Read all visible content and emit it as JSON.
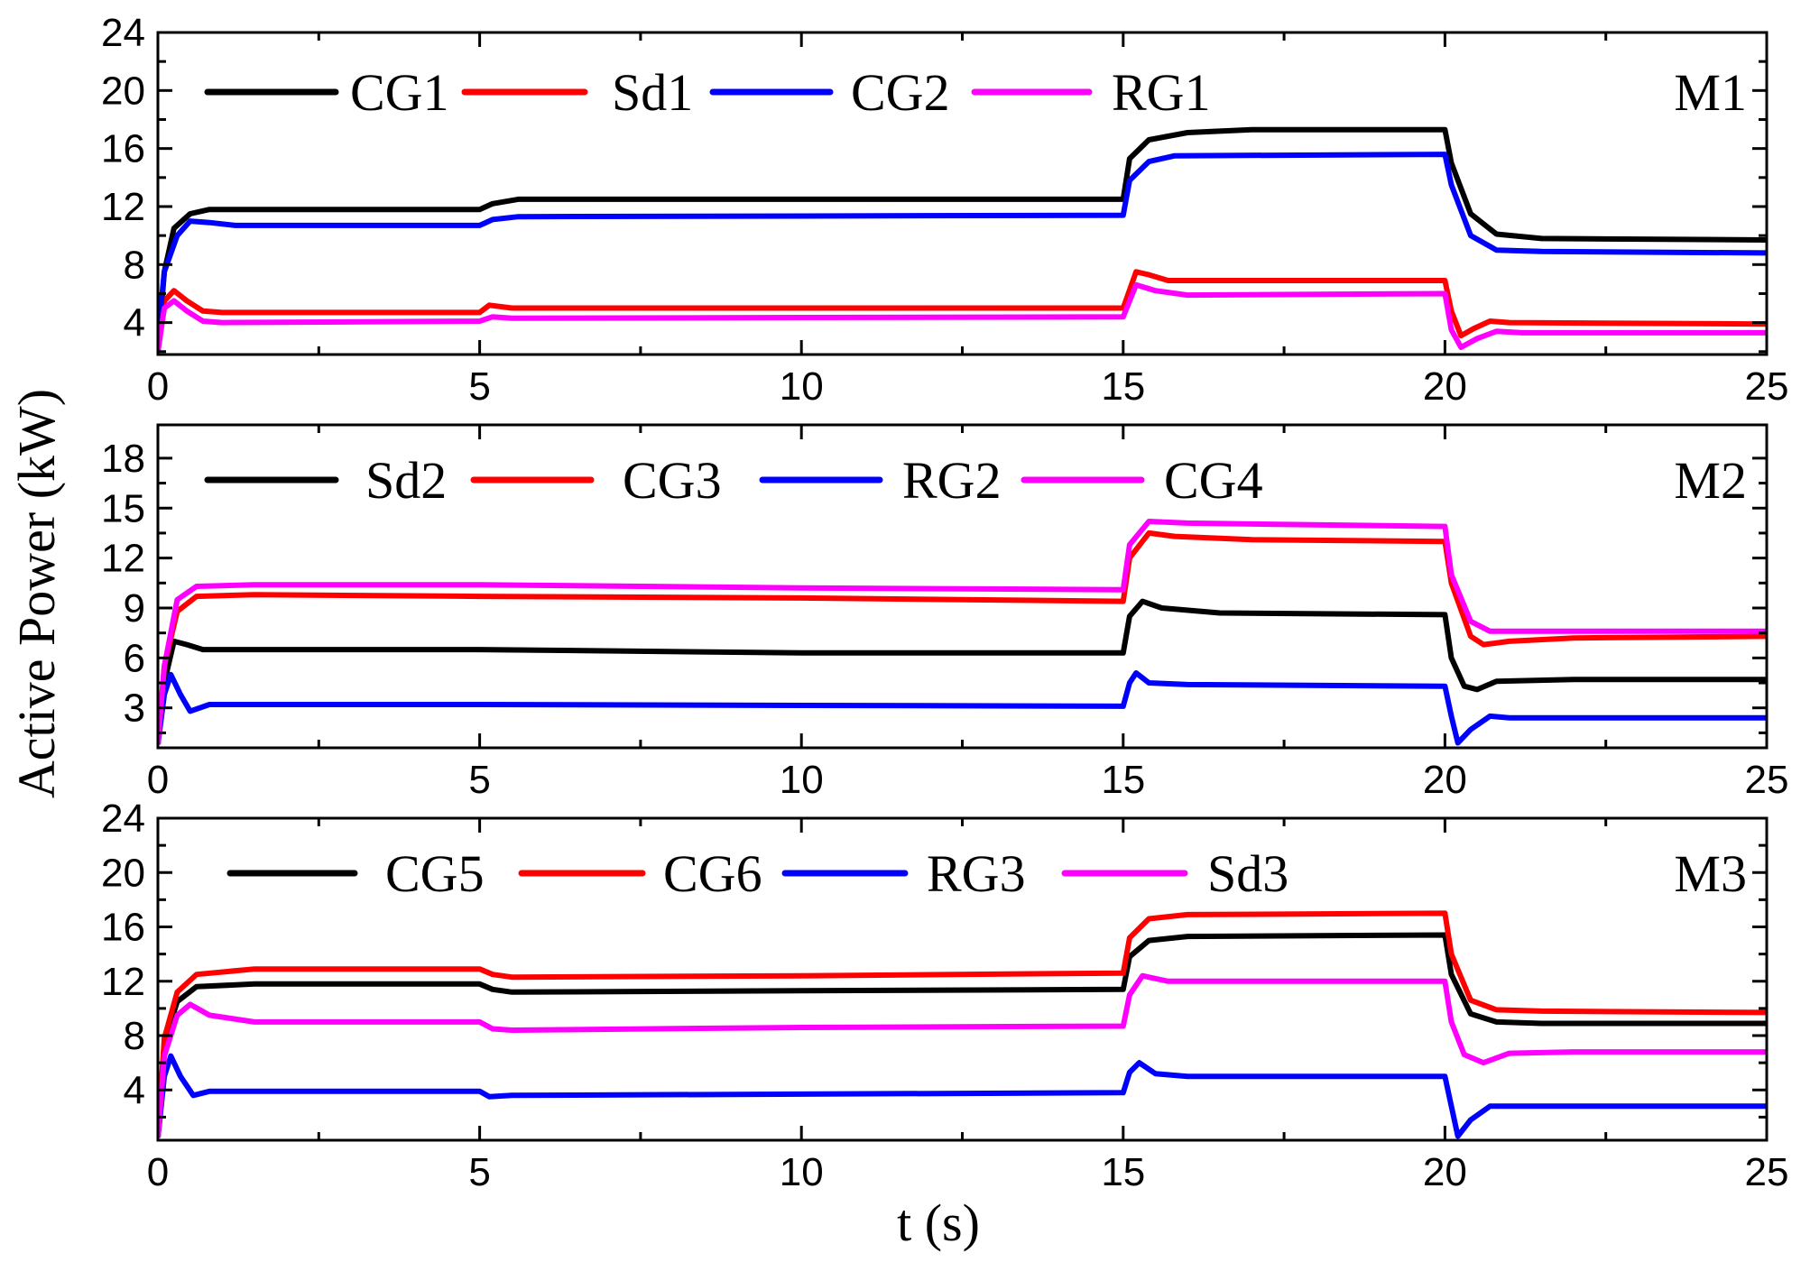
{
  "figure": {
    "ylabel": "Active Power (kW)",
    "xlabel": "t (s)"
  },
  "chart_data": [
    {
      "type": "line",
      "panel": "M1",
      "xlim": [
        0,
        25
      ],
      "ylim": [
        1.8,
        24
      ],
      "xticks": [
        0,
        5,
        10,
        15,
        20,
        25
      ],
      "yticks": [
        4,
        8,
        12,
        16,
        20,
        24
      ],
      "xlabel": "t (s)",
      "ylabel": "Active Power (kW)",
      "series": [
        {
          "name": "CG1",
          "color": "#000000",
          "points": [
            [
              0,
              2.0
            ],
            [
              0.1,
              7.5
            ],
            [
              0.25,
              10.5
            ],
            [
              0.5,
              11.5
            ],
            [
              0.8,
              11.8
            ],
            [
              5.0,
              11.8
            ],
            [
              5.2,
              12.2
            ],
            [
              5.6,
              12.5
            ],
            [
              15.0,
              12.5
            ],
            [
              15.1,
              15.3
            ],
            [
              15.4,
              16.6
            ],
            [
              16.0,
              17.1
            ],
            [
              17.0,
              17.3
            ],
            [
              20.0,
              17.3
            ],
            [
              20.1,
              15.0
            ],
            [
              20.4,
              11.5
            ],
            [
              20.8,
              10.1
            ],
            [
              21.5,
              9.8
            ],
            [
              25,
              9.7
            ]
          ]
        },
        {
          "name": "Sd1",
          "color": "#ff0000",
          "points": [
            [
              0,
              2.0
            ],
            [
              0.1,
              5.5
            ],
            [
              0.25,
              6.2
            ],
            [
              0.45,
              5.5
            ],
            [
              0.7,
              4.8
            ],
            [
              1.0,
              4.7
            ],
            [
              5.0,
              4.7
            ],
            [
              5.15,
              5.2
            ],
            [
              5.5,
              5.0
            ],
            [
              15.0,
              5.0
            ],
            [
              15.2,
              7.5
            ],
            [
              15.4,
              7.3
            ],
            [
              15.7,
              6.9
            ],
            [
              16.2,
              6.9
            ],
            [
              20.0,
              6.9
            ],
            [
              20.1,
              4.8
            ],
            [
              20.25,
              3.1
            ],
            [
              20.45,
              3.6
            ],
            [
              20.7,
              4.1
            ],
            [
              21.0,
              4.0
            ],
            [
              25,
              3.9
            ]
          ]
        },
        {
          "name": "CG2",
          "color": "#0000ff",
          "points": [
            [
              0,
              3.0
            ],
            [
              0.1,
              7.5
            ],
            [
              0.3,
              10.0
            ],
            [
              0.5,
              11.0
            ],
            [
              0.8,
              10.9
            ],
            [
              1.2,
              10.7
            ],
            [
              5.0,
              10.7
            ],
            [
              5.2,
              11.1
            ],
            [
              5.6,
              11.3
            ],
            [
              15.0,
              11.4
            ],
            [
              15.1,
              13.8
            ],
            [
              15.4,
              15.1
            ],
            [
              15.8,
              15.5
            ],
            [
              20.0,
              15.6
            ],
            [
              20.1,
              13.5
            ],
            [
              20.4,
              10.0
            ],
            [
              20.8,
              9.0
            ],
            [
              21.5,
              8.9
            ],
            [
              25,
              8.8
            ]
          ]
        },
        {
          "name": "RG1",
          "color": "#ff00ff",
          "points": [
            [
              0,
              2.0
            ],
            [
              0.1,
              5.0
            ],
            [
              0.25,
              5.5
            ],
            [
              0.45,
              4.8
            ],
            [
              0.7,
              4.1
            ],
            [
              1.0,
              4.0
            ],
            [
              5.0,
              4.1
            ],
            [
              5.2,
              4.4
            ],
            [
              5.5,
              4.3
            ],
            [
              15.0,
              4.4
            ],
            [
              15.2,
              6.6
            ],
            [
              15.5,
              6.2
            ],
            [
              16.0,
              5.9
            ],
            [
              20.0,
              6.0
            ],
            [
              20.1,
              3.5
            ],
            [
              20.25,
              2.3
            ],
            [
              20.5,
              2.9
            ],
            [
              20.8,
              3.4
            ],
            [
              21.2,
              3.3
            ],
            [
              25,
              3.3
            ]
          ]
        }
      ]
    },
    {
      "type": "line",
      "panel": "M2",
      "xlim": [
        0,
        25
      ],
      "ylim": [
        0.6,
        20
      ],
      "xticks": [
        0,
        5,
        10,
        15,
        20,
        25
      ],
      "yticks": [
        3,
        6,
        9,
        12,
        15,
        18
      ],
      "xlabel": "t (s)",
      "ylabel": "Active Power (kW)",
      "series": [
        {
          "name": "Sd2",
          "color": "#000000",
          "points": [
            [
              0,
              0.8
            ],
            [
              0.1,
              4.5
            ],
            [
              0.25,
              7.0
            ],
            [
              0.45,
              6.8
            ],
            [
              0.7,
              6.5
            ],
            [
              5.0,
              6.5
            ],
            [
              10.0,
              6.3
            ],
            [
              15.0,
              6.3
            ],
            [
              15.1,
              8.5
            ],
            [
              15.3,
              9.4
            ],
            [
              15.6,
              9.0
            ],
            [
              16.5,
              8.7
            ],
            [
              20.0,
              8.6
            ],
            [
              20.1,
              6.0
            ],
            [
              20.3,
              4.3
            ],
            [
              20.5,
              4.1
            ],
            [
              20.8,
              4.6
            ],
            [
              22.0,
              4.7
            ],
            [
              25,
              4.7
            ]
          ]
        },
        {
          "name": "CG3",
          "color": "#ff0000",
          "points": [
            [
              0,
              0.8
            ],
            [
              0.1,
              5.5
            ],
            [
              0.3,
              8.8
            ],
            [
              0.6,
              9.7
            ],
            [
              1.5,
              9.8
            ],
            [
              5.0,
              9.7
            ],
            [
              10.0,
              9.6
            ],
            [
              15.0,
              9.4
            ],
            [
              15.1,
              12.0
            ],
            [
              15.4,
              13.5
            ],
            [
              15.8,
              13.3
            ],
            [
              17.0,
              13.1
            ],
            [
              20.0,
              13.0
            ],
            [
              20.1,
              10.5
            ],
            [
              20.4,
              7.3
            ],
            [
              20.6,
              6.8
            ],
            [
              21.0,
              7.0
            ],
            [
              22.0,
              7.2
            ],
            [
              25,
              7.3
            ]
          ]
        },
        {
          "name": "RG2",
          "color": "#0000ff",
          "points": [
            [
              0,
              0.8
            ],
            [
              0.1,
              3.8
            ],
            [
              0.2,
              5.0
            ],
            [
              0.35,
              3.8
            ],
            [
              0.5,
              2.8
            ],
            [
              0.8,
              3.2
            ],
            [
              1.5,
              3.2
            ],
            [
              5.0,
              3.2
            ],
            [
              15.0,
              3.1
            ],
            [
              15.1,
              4.5
            ],
            [
              15.2,
              5.1
            ],
            [
              15.4,
              4.5
            ],
            [
              16.0,
              4.4
            ],
            [
              20.0,
              4.3
            ],
            [
              20.1,
              2.5
            ],
            [
              20.2,
              0.9
            ],
            [
              20.4,
              1.7
            ],
            [
              20.7,
              2.5
            ],
            [
              21.0,
              2.4
            ],
            [
              25,
              2.4
            ]
          ]
        },
        {
          "name": "CG4",
          "color": "#ff00ff",
          "points": [
            [
              0,
              0.8
            ],
            [
              0.1,
              5.5
            ],
            [
              0.3,
              9.5
            ],
            [
              0.6,
              10.3
            ],
            [
              1.5,
              10.4
            ],
            [
              5.0,
              10.4
            ],
            [
              10.0,
              10.2
            ],
            [
              15.0,
              10.1
            ],
            [
              15.1,
              12.8
            ],
            [
              15.4,
              14.2
            ],
            [
              16.0,
              14.1
            ],
            [
              20.0,
              13.9
            ],
            [
              20.1,
              11.0
            ],
            [
              20.4,
              8.2
            ],
            [
              20.7,
              7.6
            ],
            [
              22.0,
              7.6
            ],
            [
              25,
              7.6
            ]
          ]
        }
      ]
    },
    {
      "type": "line",
      "panel": "M3",
      "xlim": [
        0,
        25
      ],
      "ylim": [
        0.3,
        24
      ],
      "xticks": [
        0,
        5,
        10,
        15,
        20,
        25
      ],
      "yticks": [
        4,
        8,
        12,
        16,
        20,
        24
      ],
      "xlabel": "t (s)",
      "ylabel": "Active Power (kW)",
      "series": [
        {
          "name": "CG5",
          "color": "#000000",
          "points": [
            [
              0,
              0.5
            ],
            [
              0.1,
              7.5
            ],
            [
              0.3,
              10.5
            ],
            [
              0.6,
              11.6
            ],
            [
              1.5,
              11.8
            ],
            [
              5.0,
              11.8
            ],
            [
              5.2,
              11.4
            ],
            [
              5.5,
              11.2
            ],
            [
              10.0,
              11.3
            ],
            [
              15.0,
              11.4
            ],
            [
              15.1,
              13.8
            ],
            [
              15.4,
              15.0
            ],
            [
              16.0,
              15.3
            ],
            [
              20.0,
              15.4
            ],
            [
              20.1,
              12.5
            ],
            [
              20.4,
              9.6
            ],
            [
              20.8,
              9.0
            ],
            [
              21.5,
              8.9
            ],
            [
              25,
              8.9
            ]
          ]
        },
        {
          "name": "CG6",
          "color": "#ff0000",
          "points": [
            [
              0,
              0.5
            ],
            [
              0.1,
              7.8
            ],
            [
              0.3,
              11.2
            ],
            [
              0.6,
              12.5
            ],
            [
              1.5,
              12.9
            ],
            [
              5.0,
              12.9
            ],
            [
              5.2,
              12.5
            ],
            [
              5.5,
              12.3
            ],
            [
              10.0,
              12.4
            ],
            [
              15.0,
              12.6
            ],
            [
              15.1,
              15.2
            ],
            [
              15.4,
              16.6
            ],
            [
              16.0,
              16.9
            ],
            [
              20.0,
              17.0
            ],
            [
              20.1,
              14.0
            ],
            [
              20.4,
              10.6
            ],
            [
              20.8,
              9.9
            ],
            [
              21.5,
              9.8
            ],
            [
              25,
              9.7
            ]
          ]
        },
        {
          "name": "RG3",
          "color": "#0000ff",
          "points": [
            [
              0,
              0.5
            ],
            [
              0.1,
              5.0
            ],
            [
              0.2,
              6.5
            ],
            [
              0.35,
              5.0
            ],
            [
              0.55,
              3.6
            ],
            [
              0.8,
              3.9
            ],
            [
              1.5,
              3.9
            ],
            [
              5.0,
              3.9
            ],
            [
              5.15,
              3.5
            ],
            [
              5.5,
              3.6
            ],
            [
              15.0,
              3.8
            ],
            [
              15.1,
              5.3
            ],
            [
              15.25,
              6.0
            ],
            [
              15.5,
              5.2
            ],
            [
              16.0,
              5.0
            ],
            [
              20.0,
              5.0
            ],
            [
              20.1,
              2.8
            ],
            [
              20.2,
              0.6
            ],
            [
              20.4,
              1.8
            ],
            [
              20.7,
              2.8
            ],
            [
              21.0,
              2.8
            ],
            [
              25,
              2.8
            ]
          ]
        },
        {
          "name": "Sd3",
          "color": "#ff00ff",
          "points": [
            [
              0,
              0.5
            ],
            [
              0.1,
              6.5
            ],
            [
              0.3,
              9.5
            ],
            [
              0.5,
              10.3
            ],
            [
              0.8,
              9.5
            ],
            [
              1.5,
              9.0
            ],
            [
              5.0,
              9.0
            ],
            [
              5.2,
              8.5
            ],
            [
              5.5,
              8.4
            ],
            [
              10.0,
              8.6
            ],
            [
              15.0,
              8.7
            ],
            [
              15.1,
              11.0
            ],
            [
              15.3,
              12.4
            ],
            [
              15.7,
              12.0
            ],
            [
              20.0,
              12.0
            ],
            [
              20.1,
              9.0
            ],
            [
              20.3,
              6.6
            ],
            [
              20.6,
              6.0
            ],
            [
              21.0,
              6.7
            ],
            [
              22.0,
              6.8
            ],
            [
              25,
              6.8
            ]
          ]
        }
      ]
    }
  ]
}
